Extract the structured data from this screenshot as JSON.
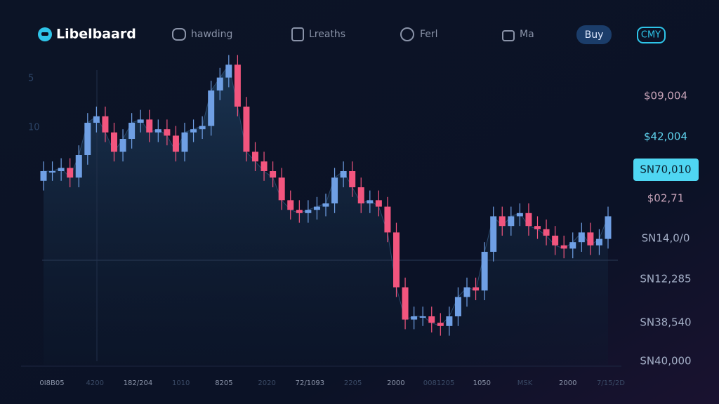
{
  "nav": {
    "logo": "Libelbaard",
    "items": [
      "hawding",
      "Lreaths",
      "Ferl",
      "Ma"
    ],
    "buy": "Buy",
    "badge": "CMY"
  },
  "chart_data": {
    "type": "candlestick",
    "ylim": [
      0,
      100
    ],
    "up_color": "#6f9fe4",
    "down_color": "#f2557e",
    "open": [
      57,
      60,
      60,
      61,
      58,
      65,
      75,
      77,
      72,
      66,
      70,
      75,
      76,
      72,
      73,
      71,
      66,
      72,
      73,
      74,
      85,
      89,
      93,
      80,
      66,
      63,
      60,
      58,
      51,
      48,
      47,
      48,
      49,
      50,
      58,
      60,
      55,
      50,
      51,
      49,
      41,
      24,
      14,
      15,
      15,
      13,
      12,
      15,
      21,
      24,
      23,
      35,
      46,
      43,
      46,
      47,
      43,
      42,
      40,
      37,
      36,
      38,
      41,
      37,
      39
    ],
    "high": [
      63,
      63,
      64,
      64,
      68,
      78,
      80,
      80,
      75,
      73,
      78,
      79,
      79,
      76,
      76,
      74,
      75,
      76,
      77,
      88,
      92,
      96,
      96,
      83,
      69,
      66,
      63,
      61,
      54,
      51,
      51,
      52,
      53,
      61,
      63,
      63,
      58,
      54,
      54,
      52,
      44,
      27,
      18,
      18,
      18,
      16,
      18,
      24,
      27,
      27,
      38,
      49,
      49,
      49,
      50,
      50,
      46,
      45,
      43,
      40,
      41,
      44,
      44,
      42,
      49
    ],
    "low": [
      54,
      57,
      57,
      55,
      55,
      62,
      72,
      69,
      63,
      63,
      67,
      72,
      69,
      69,
      68,
      63,
      63,
      69,
      70,
      71,
      82,
      86,
      77,
      63,
      60,
      57,
      55,
      48,
      45,
      44,
      44,
      45,
      46,
      47,
      55,
      52,
      47,
      47,
      46,
      38,
      21,
      11,
      11,
      12,
      10,
      9,
      9,
      12,
      18,
      20,
      20,
      32,
      40,
      40,
      43,
      40,
      39,
      37,
      34,
      33,
      33,
      35,
      34,
      34,
      36
    ],
    "close": [
      60,
      60,
      61,
      58,
      65,
      75,
      77,
      72,
      66,
      70,
      75,
      76,
      72,
      73,
      71,
      66,
      72,
      73,
      74,
      85,
      89,
      93,
      80,
      66,
      63,
      60,
      58,
      51,
      48,
      47,
      48,
      49,
      50,
      58,
      60,
      55,
      50,
      51,
      49,
      41,
      24,
      14,
      15,
      15,
      13,
      12,
      15,
      21,
      24,
      23,
      35,
      46,
      43,
      46,
      47,
      43,
      42,
      40,
      37,
      36,
      38,
      41,
      37,
      39,
      46
    ],
    "left_labels": [
      "5",
      "10"
    ],
    "right_labels": [
      "$09,004",
      "$42,004",
      "SN70,010",
      "$02,71",
      "SN14,0/0",
      "SN12,285",
      "SN38,540",
      "SN40,000"
    ],
    "highlight_label": 2,
    "bottom_labels": [
      "0I8B05",
      "4200",
      "182/204",
      "1010",
      "8205",
      "2020",
      "72/1093",
      "2205",
      "2000",
      "0081205",
      "1050",
      "MSK",
      "2000",
      "7/15/2D"
    ]
  }
}
